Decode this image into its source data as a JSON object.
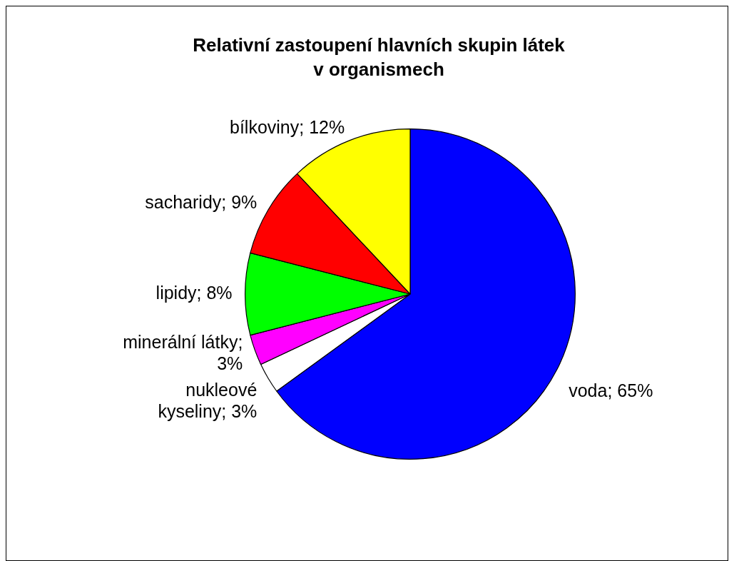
{
  "chart_data": {
    "type": "pie",
    "title": "Relativní zastoupení hlavních skupin látek v organismech",
    "categories": [
      "voda; 65%",
      "nukleové kyseliny; 3%",
      "minerální látky; 3%",
      "lipidy; 8%",
      "sacharidy; 9%",
      "bílkoviny; 12%"
    ],
    "values": [
      65,
      3,
      3,
      8,
      9,
      12
    ],
    "colors": [
      "#0000ff",
      "#ffffff",
      "#ff00ff",
      "#00ff00",
      "#ff0000",
      "#ffff00"
    ],
    "legend": false
  }
}
